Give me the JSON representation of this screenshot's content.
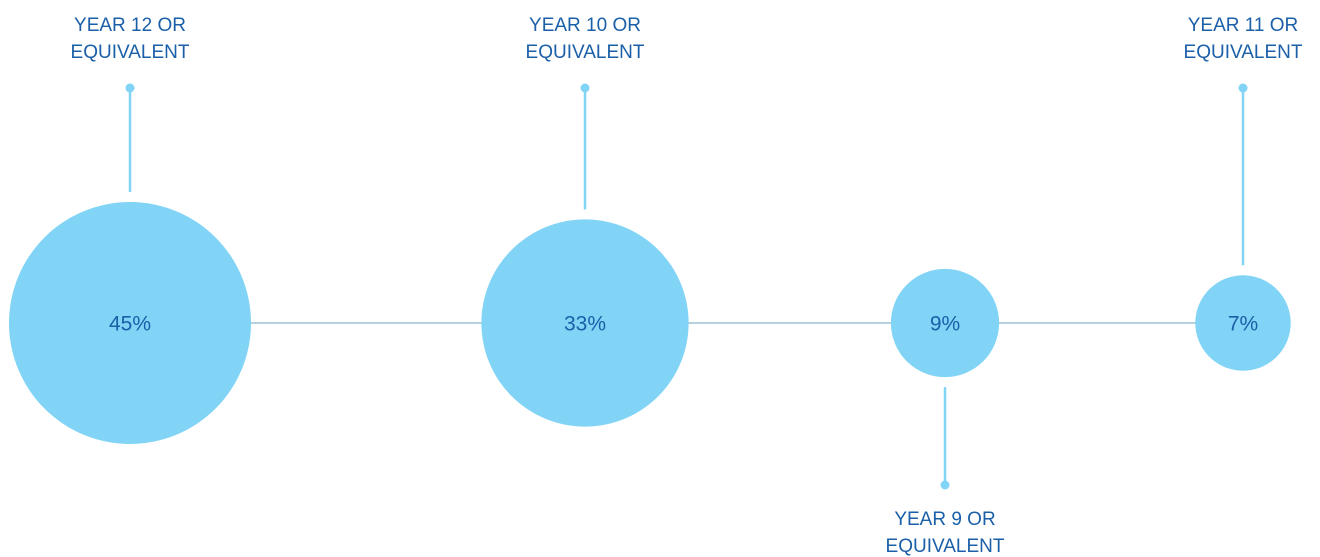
{
  "chart_data": {
    "type": "bubble",
    "title": "",
    "categories": [
      {
        "label_lines": [
          "YEAR 12 OR",
          "EQUIVALENT"
        ],
        "value": 45,
        "value_label": "45%",
        "label_position": "above"
      },
      {
        "label_lines": [
          "YEAR 10 OR",
          "EQUIVALENT"
        ],
        "value": 33,
        "value_label": "33%",
        "label_position": "above"
      },
      {
        "label_lines": [
          "YEAR 9 OR",
          "EQUIVALENT"
        ],
        "value": 9,
        "value_label": "9%",
        "label_position": "below"
      },
      {
        "label_lines": [
          "YEAR 11 OR",
          "EQUIVALENT"
        ],
        "value": 7,
        "value_label": "7%",
        "label_position": "above"
      }
    ],
    "grid": false,
    "legend": "none"
  },
  "colors": {
    "bubble": "#81d4f6",
    "value_text": "#1a5fa8",
    "label_text": "#1a5fa8",
    "axis_line": "#9cc3d6",
    "leader_line": "#81d4f6"
  }
}
